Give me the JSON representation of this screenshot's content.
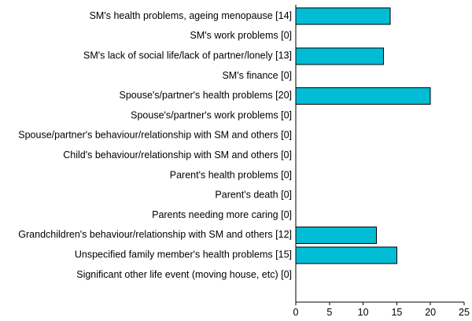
{
  "chart_data": {
    "type": "bar",
    "orientation": "horizontal",
    "categories": [
      "SM's health problems, ageing menopause [14]",
      "SM's work problems [0]",
      "SM's lack of social life/lack of partner/lonely [13]",
      "SM's finance [0]",
      "Spouse's/partner's health problems [20]",
      "Spouse's/partner's work problems [0]",
      "Spouse/partner's behaviour/relationship with SM and others [0]",
      "Child's behaviour/relationship with SM and others [0]",
      "Parent's health problems [0]",
      "Parent's death [0]",
      "Parents needing more caring [0]",
      "Grandchildren's behaviour/relationship with SM and others [12]",
      "Unspecified family member's health problems [15]",
      "Significant other life event (moving house, etc) [0]"
    ],
    "values": [
      14,
      0,
      13,
      0,
      20,
      0,
      0,
      0,
      0,
      0,
      0,
      12,
      15,
      0
    ],
    "xlim": [
      0,
      25
    ],
    "xticks": [
      "0",
      "5",
      "10",
      "15",
      "20",
      "25"
    ],
    "title": "",
    "xlabel": "",
    "ylabel": "",
    "bar_color": "#00bcd4",
    "grid": false,
    "legend": "none"
  }
}
